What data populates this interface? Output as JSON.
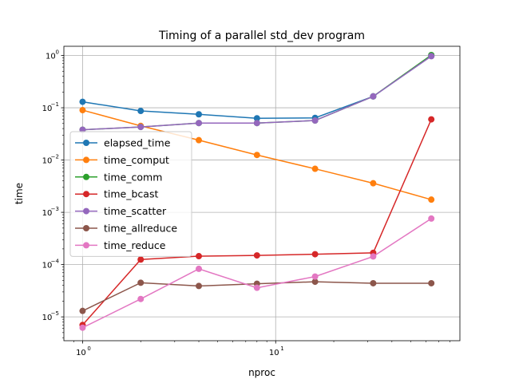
{
  "chart_data": {
    "type": "line",
    "title": "Timing of a parallel std_dev program",
    "xlabel": "nproc",
    "ylabel": "time",
    "xscale": "log",
    "yscale": "log",
    "xlim": [
      0.8,
      90
    ],
    "ylim": [
      3.5e-06,
      1.5
    ],
    "grid": true,
    "legend_position": "center-left",
    "x": [
      1,
      2,
      4,
      8,
      16,
      32,
      64
    ],
    "xticks": [
      {
        "value": 1,
        "base": "10",
        "exp": "0"
      },
      {
        "value": 10,
        "base": "10",
        "exp": "1"
      }
    ],
    "yticks": [
      {
        "value": 1e-05,
        "base": "10",
        "exp": "−5"
      },
      {
        "value": 0.0001,
        "base": "10",
        "exp": "−4"
      },
      {
        "value": 0.001,
        "base": "10",
        "exp": "−3"
      },
      {
        "value": 0.01,
        "base": "10",
        "exp": "−2"
      },
      {
        "value": 0.1,
        "base": "10",
        "exp": "−1"
      },
      {
        "value": 1,
        "base": "10",
        "exp": "0"
      }
    ],
    "series": [
      {
        "name": "elapsed_time",
        "color": "#1f77b4",
        "values": [
          0.13,
          0.087,
          0.075,
          0.063,
          0.064,
          0.165,
          0.98
        ]
      },
      {
        "name": "time_comput",
        "color": "#ff7f0e",
        "values": [
          0.09,
          0.045,
          0.024,
          0.0125,
          0.0068,
          0.0036,
          0.00175
        ]
      },
      {
        "name": "time_comm",
        "color": "#2ca02c",
        "values": [
          0.038,
          0.043,
          0.051,
          0.051,
          0.057,
          0.165,
          1.02
        ]
      },
      {
        "name": "time_bcast",
        "color": "#d62728",
        "values": [
          7e-06,
          0.000125,
          0.000145,
          0.00015,
          0.000158,
          0.000168,
          0.06
        ]
      },
      {
        "name": "time_scatter",
        "color": "#9467bd",
        "values": [
          0.038,
          0.043,
          0.051,
          0.051,
          0.057,
          0.165,
          0.97
        ]
      },
      {
        "name": "time_allreduce",
        "color": "#8c564b",
        "values": [
          1.3e-05,
          4.5e-05,
          3.9e-05,
          4.3e-05,
          4.7e-05,
          4.4e-05,
          4.4e-05
        ]
      },
      {
        "name": "time_reduce",
        "color": "#e377c2",
        "values": [
          6.2e-06,
          2.2e-05,
          8.3e-05,
          3.6e-05,
          5.9e-05,
          0.000143,
          0.00076
        ]
      }
    ]
  }
}
